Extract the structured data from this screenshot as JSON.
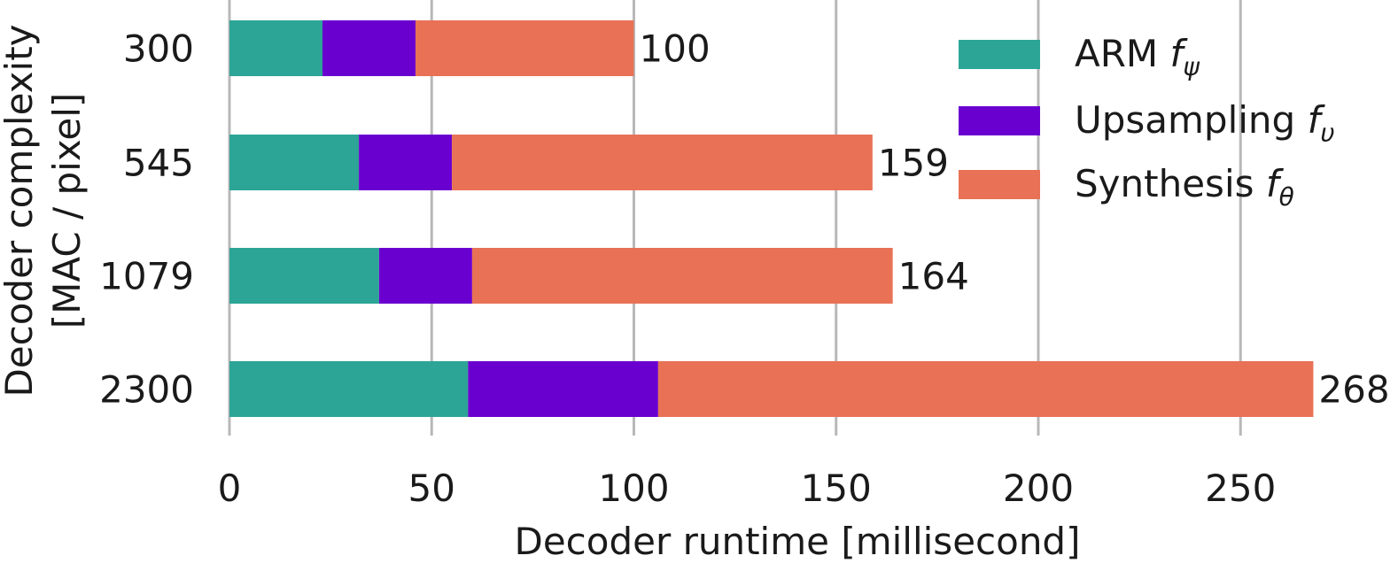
{
  "chart_data": {
    "type": "bar",
    "orientation": "horizontal",
    "stacked": true,
    "xlabel": "Decoder runtime [millisecond]",
    "ylabel_lines": [
      "Decoder complexity",
      "[MAC / pixel]"
    ],
    "categories": [
      "300",
      "545",
      "1079",
      "2300"
    ],
    "series": [
      {
        "name": "ARM",
        "symbol": "f",
        "subscript": "ψ",
        "color": "#2ca596",
        "values": [
          23,
          32,
          37,
          59
        ]
      },
      {
        "name": "Upsampling",
        "symbol": "f",
        "subscript": "υ",
        "color": "#6a00d0",
        "values": [
          23,
          23,
          23,
          47
        ]
      },
      {
        "name": "Synthesis",
        "symbol": "f",
        "subscript": "θ",
        "color": "#e87156",
        "values": [
          54,
          104,
          104,
          162
        ]
      }
    ],
    "totals": [
      100,
      159,
      164,
      268
    ],
    "total_labels": [
      "100",
      "159",
      "164",
      "268"
    ],
    "xlim": [
      0,
      268
    ],
    "xticks": [
      0,
      50,
      100,
      150,
      200,
      250
    ],
    "xtick_labels": [
      "0",
      "50",
      "100",
      "150",
      "200",
      "250"
    ],
    "grid": "vertical",
    "legend_position": "top-right"
  }
}
